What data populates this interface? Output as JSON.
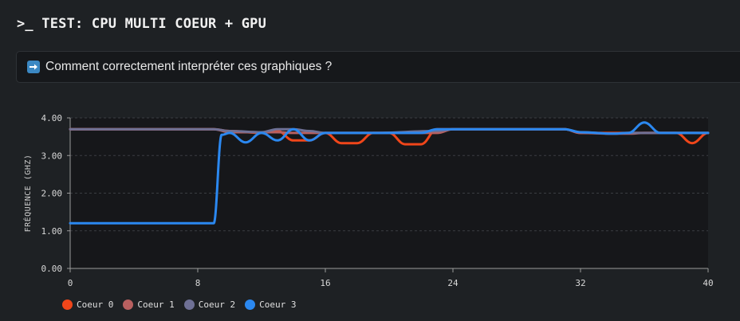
{
  "header": {
    "title": ">_ TEST: CPU MULTI COEUR + GPU"
  },
  "help": {
    "text": "Comment correctement interpréter ces graphiques ?",
    "icon": "right-arrow-icon"
  },
  "colors": {
    "background": "#1e2124",
    "plot_background": "#16171a",
    "grid": "#3a3d42"
  },
  "chart_data": {
    "type": "line",
    "title": "",
    "xlabel": "",
    "ylabel": "FRÉQUENCE (GHZ)",
    "xlim": [
      0,
      40
    ],
    "ylim": [
      0,
      4
    ],
    "xticks": [
      "0",
      "8",
      "16",
      "24",
      "32",
      "40"
    ],
    "yticks": [
      "0.00",
      "1.00",
      "2.00",
      "3.00",
      "4.00"
    ],
    "grid": true,
    "legend": "bottom-left",
    "series": [
      {
        "name": "Coeur 0",
        "color": "#f0461a",
        "points": [
          [
            0,
            3.7
          ],
          [
            9,
            3.7
          ],
          [
            10,
            3.65
          ],
          [
            12,
            3.6
          ],
          [
            13,
            3.65
          ],
          [
            14,
            3.4
          ],
          [
            15,
            3.4
          ],
          [
            16,
            3.6
          ],
          [
            17,
            3.33
          ],
          [
            18,
            3.33
          ],
          [
            19,
            3.6
          ],
          [
            20,
            3.6
          ],
          [
            21,
            3.3
          ],
          [
            22,
            3.3
          ],
          [
            23,
            3.7
          ],
          [
            31,
            3.7
          ],
          [
            32,
            3.6
          ],
          [
            33,
            3.6
          ],
          [
            34,
            3.6
          ],
          [
            35,
            3.6
          ],
          [
            36,
            3.6
          ],
          [
            37,
            3.6
          ],
          [
            38,
            3.6
          ],
          [
            39,
            3.33
          ],
          [
            40,
            3.6
          ]
        ]
      },
      {
        "name": "Coeur 1",
        "color": "#b86060",
        "points": [
          [
            0,
            3.7
          ],
          [
            9,
            3.7
          ],
          [
            10,
            3.62
          ],
          [
            13,
            3.62
          ],
          [
            14,
            3.6
          ],
          [
            16,
            3.6
          ],
          [
            19,
            3.6
          ],
          [
            23,
            3.6
          ],
          [
            24,
            3.7
          ],
          [
            31,
            3.7
          ],
          [
            32,
            3.6
          ],
          [
            34,
            3.58
          ],
          [
            35,
            3.58
          ],
          [
            36,
            3.6
          ],
          [
            37,
            3.6
          ],
          [
            38,
            3.6
          ],
          [
            40,
            3.6
          ]
        ]
      },
      {
        "name": "Coeur 2",
        "color": "#6f7196",
        "points": [
          [
            0,
            3.7
          ],
          [
            9,
            3.7
          ],
          [
            10,
            3.65
          ],
          [
            12,
            3.62
          ],
          [
            13,
            3.7
          ],
          [
            14,
            3.7
          ],
          [
            15,
            3.65
          ],
          [
            16,
            3.6
          ],
          [
            19,
            3.6
          ],
          [
            23,
            3.65
          ],
          [
            24,
            3.7
          ],
          [
            31,
            3.7
          ],
          [
            32,
            3.62
          ],
          [
            34,
            3.58
          ],
          [
            35,
            3.6
          ],
          [
            36,
            3.6
          ],
          [
            40,
            3.6
          ]
        ]
      },
      {
        "name": "Coeur 3",
        "color": "#2b88f0",
        "points": [
          [
            0,
            1.2
          ],
          [
            9,
            1.2
          ],
          [
            9.5,
            3.55
          ],
          [
            10,
            3.6
          ],
          [
            11,
            3.35
          ],
          [
            12,
            3.6
          ],
          [
            13,
            3.4
          ],
          [
            14,
            3.7
          ],
          [
            15,
            3.4
          ],
          [
            16,
            3.6
          ],
          [
            19,
            3.6
          ],
          [
            22,
            3.6
          ],
          [
            23,
            3.7
          ],
          [
            31,
            3.7
          ],
          [
            32,
            3.62
          ],
          [
            34,
            3.58
          ],
          [
            35,
            3.6
          ],
          [
            36,
            3.88
          ],
          [
            37,
            3.6
          ],
          [
            40,
            3.6
          ]
        ]
      }
    ]
  }
}
